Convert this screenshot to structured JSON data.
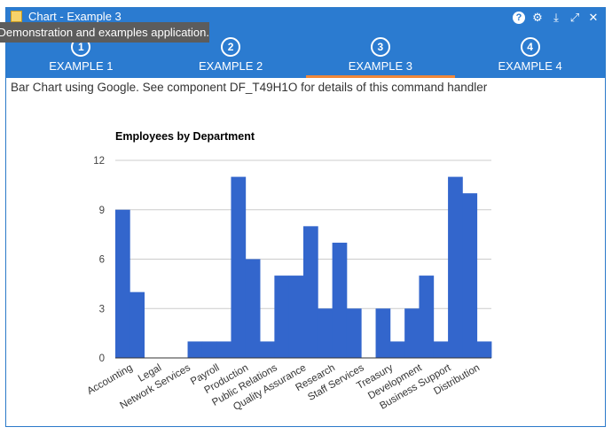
{
  "window": {
    "title": "Chart - Example 3",
    "tooltip": "Demonstration and examples application.",
    "controls": [
      {
        "name": "help-icon",
        "glyph": "?"
      },
      {
        "name": "gear-icon",
        "glyph": "⚙"
      },
      {
        "name": "collapse-icon",
        "glyph": "⤓"
      },
      {
        "name": "expand-icon",
        "glyph": "⤢"
      },
      {
        "name": "close-icon",
        "glyph": "✕"
      }
    ]
  },
  "tabs": [
    {
      "number": "1",
      "label": "EXAMPLE 1",
      "active": false
    },
    {
      "number": "2",
      "label": "EXAMPLE 2",
      "active": false
    },
    {
      "number": "3",
      "label": "EXAMPLE 3",
      "active": true
    },
    {
      "number": "4",
      "label": "EXAMPLE 4",
      "active": false
    }
  ],
  "description": "Bar Chart using Google. See component DF_T49H1O for details of this command handler",
  "colors": {
    "accent": "#2b7bd0",
    "active_tab": "#f0883a",
    "bar": "#3366cc"
  },
  "chart_data": {
    "type": "bar",
    "title": "Employees by Department",
    "xlabel": "",
    "ylabel": "",
    "ylim": [
      0,
      12
    ],
    "yticks": [
      0,
      3,
      6,
      9,
      12
    ],
    "grid": true,
    "categories": [
      "Accounting",
      "",
      "Legal",
      "",
      "Network Services",
      "",
      "Payroll",
      "",
      "Production",
      "",
      "Public Relations",
      "",
      "Quality Assurance",
      "",
      "Research",
      "",
      "Staff Services",
      "",
      "Treasury",
      "",
      "Development",
      "",
      "Business Support",
      "",
      "Distribution",
      ""
    ],
    "values": [
      9,
      4,
      0,
      0,
      0,
      1,
      1,
      1,
      11,
      6,
      1,
      5,
      5,
      8,
      3,
      7,
      3,
      0,
      3,
      1,
      3,
      5,
      1,
      11,
      10,
      1
    ]
  }
}
